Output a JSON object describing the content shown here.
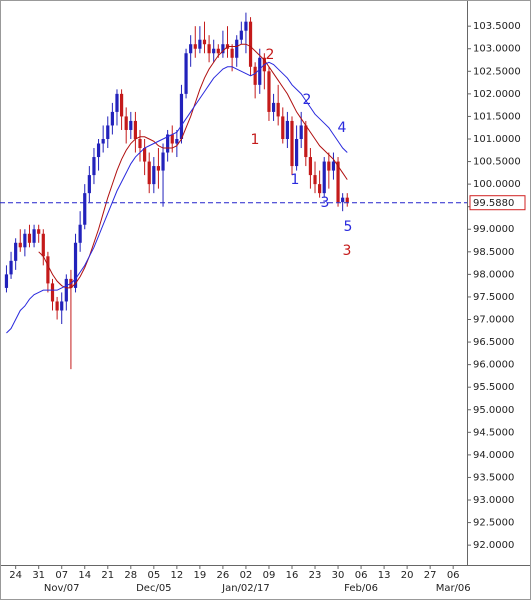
{
  "chart_data": {
    "type": "candlestick",
    "x": [
      0,
      1,
      2,
      3,
      4,
      5,
      6,
      7,
      8,
      9,
      10,
      11,
      12,
      13,
      14,
      15,
      16,
      17,
      18,
      19,
      20,
      21,
      22,
      23,
      24,
      25,
      26,
      27,
      28,
      29,
      30,
      31,
      32,
      33,
      34,
      35,
      36,
      37,
      38,
      39,
      40,
      41,
      42,
      43,
      44,
      45,
      46,
      47,
      48,
      49,
      50,
      51,
      52,
      53,
      54,
      55,
      56,
      57,
      58,
      59,
      60,
      61,
      62,
      63,
      64,
      65,
      66,
      67,
      68,
      69,
      70,
      71,
      72,
      73,
      74
    ],
    "open": [
      97.7,
      98.0,
      98.3,
      98.7,
      98.6,
      98.9,
      98.7,
      99.0,
      98.9,
      98.4,
      97.8,
      97.4,
      97.2,
      97.4,
      97.9,
      97.7,
      98.7,
      99.1,
      99.8,
      100.2,
      100.6,
      100.9,
      101.0,
      101.3,
      101.6,
      102.0,
      101.5,
      101.2,
      101.4,
      101.0,
      100.8,
      100.5,
      100.0,
      100.4,
      100.3,
      100.7,
      101.1,
      100.9,
      101.0,
      102.0,
      102.9,
      103.1,
      103.0,
      103.2,
      103.1,
      102.9,
      103.0,
      102.9,
      103.1,
      103.0,
      102.8,
      103.2,
      103.4,
      103.6,
      102.6,
      102.2,
      102.8,
      102.5,
      101.6,
      101.8,
      101.5,
      101.0,
      101.4,
      100.4,
      101.0,
      101.3,
      100.6,
      100.2,
      100.0,
      99.8,
      100.5,
      100.3,
      100.5,
      99.6,
      99.7
    ],
    "high": [
      98.2,
      98.5,
      98.8,
      99.0,
      99.0,
      99.1,
      99.1,
      99.1,
      99.0,
      98.5,
      97.9,
      97.5,
      97.6,
      98.0,
      98.1,
      98.9,
      99.4,
      100.0,
      100.4,
      100.8,
      101.0,
      101.3,
      101.5,
      101.8,
      102.1,
      102.1,
      101.7,
      101.6,
      101.6,
      101.2,
      101.0,
      100.7,
      100.6,
      100.8,
      100.9,
      101.2,
      101.3,
      101.2,
      102.2,
      103.0,
      103.3,
      103.5,
      103.5,
      103.6,
      103.3,
      103.2,
      103.1,
      103.4,
      103.5,
      103.1,
      103.3,
      103.6,
      103.8,
      103.7,
      102.7,
      103.0,
      102.9,
      102.6,
      102.0,
      102.2,
      101.7,
      101.6,
      101.5,
      101.3,
      101.6,
      101.4,
      100.8,
      100.5,
      100.3,
      100.6,
      100.7,
      100.7,
      100.6,
      99.8,
      99.8
    ],
    "low": [
      97.6,
      97.9,
      98.1,
      98.5,
      98.4,
      98.6,
      98.6,
      98.7,
      98.2,
      97.6,
      97.2,
      97.0,
      96.9,
      97.2,
      95.9,
      97.6,
      98.5,
      99.0,
      99.6,
      100.0,
      100.3,
      100.7,
      100.8,
      101.1,
      101.3,
      101.2,
      100.9,
      101.0,
      100.7,
      100.5,
      100.2,
      99.8,
      99.8,
      99.9,
      99.5,
      100.5,
      100.7,
      100.6,
      100.9,
      101.9,
      102.6,
      102.8,
      102.9,
      102.9,
      102.7,
      102.7,
      102.8,
      102.8,
      102.8,
      102.5,
      102.6,
      103.1,
      102.9,
      102.4,
      101.9,
      102.0,
      102.1,
      101.4,
      101.4,
      101.3,
      100.9,
      100.8,
      100.2,
      100.3,
      100.8,
      100.4,
      99.9,
      99.8,
      99.7,
      99.7,
      99.9,
      100.1,
      99.5,
      99.4,
      99.5
    ],
    "close": [
      98.0,
      98.3,
      98.7,
      98.6,
      98.9,
      98.7,
      99.0,
      98.9,
      98.4,
      97.8,
      97.4,
      97.2,
      97.4,
      97.9,
      97.7,
      98.7,
      99.1,
      99.8,
      100.2,
      100.6,
      100.9,
      101.0,
      101.3,
      101.6,
      102.0,
      101.5,
      101.2,
      101.4,
      101.0,
      100.8,
      100.5,
      100.0,
      100.4,
      100.3,
      100.7,
      101.1,
      100.9,
      101.0,
      102.0,
      102.9,
      103.1,
      103.0,
      103.2,
      103.1,
      102.9,
      103.0,
      102.9,
      103.1,
      103.0,
      102.8,
      103.2,
      103.4,
      103.6,
      102.6,
      102.2,
      102.8,
      102.5,
      101.6,
      101.8,
      101.5,
      101.0,
      101.4,
      100.4,
      101.0,
      101.3,
      100.6,
      100.2,
      100.0,
      99.8,
      100.5,
      100.3,
      100.5,
      99.6,
      99.7,
      99.6
    ],
    "up_color": "#2222bb",
    "down_color": "#c41a1a",
    "lines": [
      {
        "color": "#b01010",
        "values": [
          null,
          null,
          null,
          null,
          null,
          null,
          null,
          98.5,
          98.4,
          98.2,
          98.0,
          97.85,
          97.75,
          97.7,
          97.7,
          97.8,
          97.95,
          98.15,
          98.4,
          98.7,
          99.0,
          99.35,
          99.7,
          100.0,
          100.3,
          100.55,
          100.75,
          100.9,
          101.0,
          101.05,
          101.05,
          101.0,
          100.95,
          100.85,
          100.8,
          100.8,
          100.8,
          100.85,
          101.0,
          101.25,
          101.5,
          101.8,
          102.1,
          102.35,
          102.55,
          102.7,
          102.85,
          102.95,
          103.05,
          103.05,
          103.05,
          103.1,
          103.1,
          103.05,
          102.95,
          102.85,
          102.75,
          102.6,
          102.45,
          102.3,
          102.15,
          102.0,
          101.8,
          101.6,
          101.45,
          101.3,
          101.15,
          101.0,
          100.85,
          100.75,
          100.65,
          100.55,
          100.4,
          100.25,
          100.1
        ]
      },
      {
        "color": "#2a2add",
        "values": [
          96.7,
          96.8,
          97.0,
          97.2,
          97.3,
          97.45,
          97.55,
          97.6,
          97.65,
          97.65,
          97.65,
          97.65,
          97.7,
          97.75,
          97.8,
          97.9,
          98.05,
          98.2,
          98.4,
          98.6,
          98.85,
          99.1,
          99.35,
          99.6,
          99.85,
          100.05,
          100.25,
          100.45,
          100.6,
          100.7,
          100.8,
          100.85,
          100.9,
          100.95,
          101.0,
          101.05,
          101.1,
          101.15,
          101.3,
          101.45,
          101.6,
          101.75,
          101.9,
          102.05,
          102.2,
          102.35,
          102.45,
          102.55,
          102.6,
          102.6,
          102.55,
          102.5,
          102.45,
          102.4,
          102.45,
          102.55,
          102.65,
          102.7,
          102.65,
          102.55,
          102.45,
          102.35,
          102.2,
          102.1,
          102.0,
          101.85,
          101.7,
          101.55,
          101.45,
          101.35,
          101.25,
          101.1,
          100.95,
          100.8,
          100.7
        ]
      }
    ],
    "last_price": {
      "value": 99.588,
      "label": "99.5880"
    },
    "last_price_color": "#2222cc",
    "xlim": [
      -1.4,
      100
    ],
    "ylim": [
      91.56,
      104.08
    ],
    "xticks": [
      {
        "value": 2,
        "label": "24"
      },
      {
        "value": 7,
        "label": "31"
      },
      {
        "value": 12,
        "label": "07"
      },
      {
        "value": 17,
        "label": "14"
      },
      {
        "value": 22,
        "label": "21"
      },
      {
        "value": 27,
        "label": "28"
      },
      {
        "value": 32,
        "label": "05"
      },
      {
        "value": 37,
        "label": "12"
      },
      {
        "value": 42,
        "label": "19"
      },
      {
        "value": 47,
        "label": "26"
      },
      {
        "value": 52,
        "label": "02"
      },
      {
        "value": 57,
        "label": "09"
      },
      {
        "value": 62,
        "label": "16"
      },
      {
        "value": 67,
        "label": "23"
      },
      {
        "value": 72,
        "label": "30"
      },
      {
        "value": 77,
        "label": "06"
      },
      {
        "value": 82,
        "label": "13"
      },
      {
        "value": 87,
        "label": "20"
      },
      {
        "value": 92,
        "label": "27"
      },
      {
        "value": 97,
        "label": "06"
      }
    ],
    "x_month_labels": [
      {
        "value": 12,
        "label": "Nov/07"
      },
      {
        "value": 32,
        "label": "Dec/05"
      },
      {
        "value": 52,
        "label": "Jan/02/17"
      },
      {
        "value": 77,
        "label": "Feb/06"
      },
      {
        "value": 97,
        "label": "Mar/06"
      }
    ],
    "yticks": [
      {
        "value": 92,
        "label": "92.0000"
      },
      {
        "value": 92.5,
        "label": "92.5000"
      },
      {
        "value": 93,
        "label": "93.0000"
      },
      {
        "value": 93.5,
        "label": "93.5000"
      },
      {
        "value": 94,
        "label": "94.0000"
      },
      {
        "value": 94.5,
        "label": "94.5000"
      },
      {
        "value": 95,
        "label": "95.0000"
      },
      {
        "value": 95.5,
        "label": "95.5000"
      },
      {
        "value": 96,
        "label": "96.0000"
      },
      {
        "value": 96.5,
        "label": "96.5000"
      },
      {
        "value": 97,
        "label": "97.0000"
      },
      {
        "value": 97.5,
        "label": "97.5000"
      },
      {
        "value": 98,
        "label": "98.0000"
      },
      {
        "value": 98.5,
        "label": "98.5000"
      },
      {
        "value": 99,
        "label": "99.0000"
      },
      {
        "value": 99.5,
        "label": "99.5000"
      },
      {
        "value": 100,
        "label": "100.0000"
      },
      {
        "value": 100.5,
        "label": "100.5000"
      },
      {
        "value": 101,
        "label": "101.0000"
      },
      {
        "value": 101.5,
        "label": "101.5000"
      },
      {
        "value": 102,
        "label": "102.0000"
      },
      {
        "value": 102.5,
        "label": "102.5000"
      },
      {
        "value": 103,
        "label": "103.0000"
      },
      {
        "value": 103.5,
        "label": "103.5000"
      }
    ],
    "annotations": [
      {
        "text": "1",
        "color": "#c41a1a"
      },
      {
        "text": "2",
        "color": "#c41a1a"
      },
      {
        "text": "1",
        "color": "#2a2add"
      },
      {
        "text": "2",
        "color": "#2a2add"
      },
      {
        "text": "3",
        "color": "#2a2add"
      },
      {
        "text": "4",
        "color": "#2a2add"
      },
      {
        "text": "5",
        "color": "#2a2add"
      },
      {
        "text": "3",
        "color": "#c41a1a"
      }
    ]
  }
}
